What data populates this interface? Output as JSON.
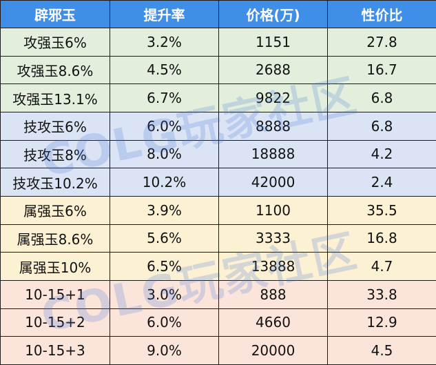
{
  "table": {
    "headers": [
      "辟邪玉",
      "提升率",
      "价格(万)",
      "性价比"
    ],
    "header_bg": "#3f8ee8",
    "rows": [
      {
        "cells": [
          "攻强玉6%",
          "3.2%",
          "1151",
          "27.8"
        ],
        "bg": "#e3efdc"
      },
      {
        "cells": [
          "攻强玉8.6%",
          "4.5%",
          "2688",
          "16.7"
        ],
        "bg": "#e3efdc"
      },
      {
        "cells": [
          "攻强玉13.1%",
          "6.7%",
          "9822",
          "6.8"
        ],
        "bg": "#e3efdc"
      },
      {
        "cells": [
          "技攻玉6%",
          "6.0%",
          "8888",
          "6.8"
        ],
        "bg": "#dbe4f4"
      },
      {
        "cells": [
          "技攻玉8%",
          "8.0%",
          "18888",
          "4.2"
        ],
        "bg": "#dbe4f4"
      },
      {
        "cells": [
          "技攻玉10.2%",
          "10.2%",
          "42000",
          "2.4"
        ],
        "bg": "#dbe4f4"
      },
      {
        "cells": [
          "属强玉6%",
          "3.9%",
          "1100",
          "35.5"
        ],
        "bg": "#fdf1d4"
      },
      {
        "cells": [
          "属强玉8.6%",
          "5.6%",
          "3333",
          "16.8"
        ],
        "bg": "#fdf1d4"
      },
      {
        "cells": [
          "属强玉10%",
          "6.5%",
          "13888",
          "4.7"
        ],
        "bg": "#fdf1d4"
      },
      {
        "cells": [
          "10-15+1",
          "3.0%",
          "888",
          "33.8"
        ],
        "bg": "#fbe4da"
      },
      {
        "cells": [
          "10-15+2",
          "6.0%",
          "4660",
          "12.9"
        ],
        "bg": "#fbe4da"
      },
      {
        "cells": [
          "10-15+3",
          "9.0%",
          "20000",
          "4.5"
        ],
        "bg": "#fbe4da"
      }
    ]
  },
  "watermark": {
    "text": "COLG玩家社区"
  }
}
